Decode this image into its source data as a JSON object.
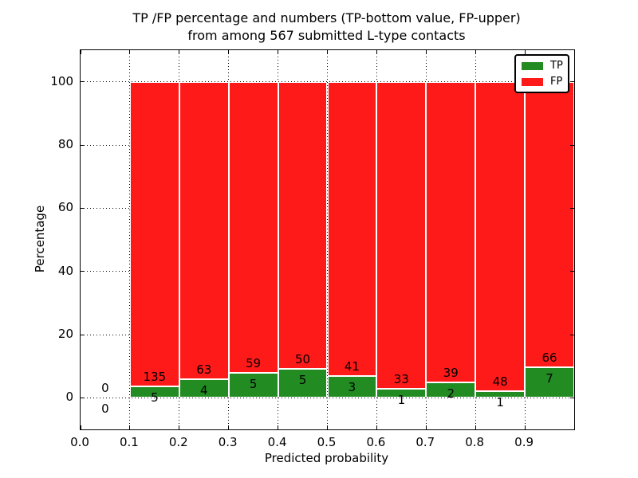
{
  "chart_data": {
    "type": "bar",
    "stacked": true,
    "normalized": "each bin scaled to 100%",
    "title": "TP /FP percentage and numbers (TP-bottom value, FP-upper) from among 567 submitted L-type contacts",
    "title_line1": "TP /FP percentage and numbers (TP-bottom value, FP-upper)",
    "title_line2": "from among 567 submitted L-type contacts",
    "xlabel": "Predicted probability",
    "ylabel": "Percentage",
    "xlim": [
      0.0,
      1.0
    ],
    "ylim": [
      -10,
      110
    ],
    "xticks": [
      "0.0",
      "0.1",
      "0.2",
      "0.3",
      "0.4",
      "0.5",
      "0.6",
      "0.7",
      "0.8",
      "0.9"
    ],
    "yticks": [
      0,
      20,
      40,
      60,
      80,
      100
    ],
    "grid": "dotted black",
    "bin_starts": [
      0.0,
      0.1,
      0.2,
      0.3,
      0.4,
      0.5,
      0.6,
      0.7,
      0.8,
      0.9
    ],
    "bin_width": 0.1,
    "total_contacts": 567,
    "legend": {
      "position": "upper right"
    },
    "series": [
      {
        "name": "TP",
        "color": "#228B22",
        "counts": [
          0,
          5,
          4,
          5,
          5,
          3,
          1,
          2,
          1,
          7
        ]
      },
      {
        "name": "FP",
        "color": "#FF1A1A",
        "counts": [
          0,
          135,
          63,
          59,
          50,
          41,
          33,
          39,
          48,
          66
        ]
      }
    ]
  }
}
